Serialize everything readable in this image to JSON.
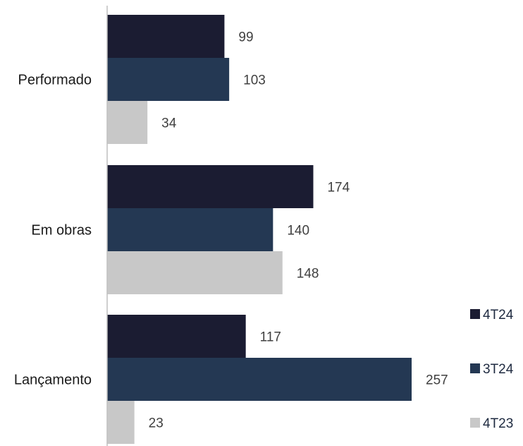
{
  "chart_data": {
    "type": "bar",
    "orientation": "horizontal",
    "title": "",
    "xlabel": "",
    "ylabel": "",
    "categories": [
      "Performado",
      "Em obras",
      "Lançamento"
    ],
    "series": [
      {
        "name": "4T24",
        "color": "#1b1c32",
        "values": [
          99,
          174,
          117
        ]
      },
      {
        "name": "3T24",
        "color": "#243853",
        "values": [
          103,
          140,
          257
        ]
      },
      {
        "name": "4T23",
        "color": "#c8c8c8",
        "values": [
          34,
          148,
          23
        ]
      }
    ],
    "xlim": [
      0,
      300
    ],
    "grid": false,
    "data_labels": true,
    "legend_position": "right-bottom"
  }
}
